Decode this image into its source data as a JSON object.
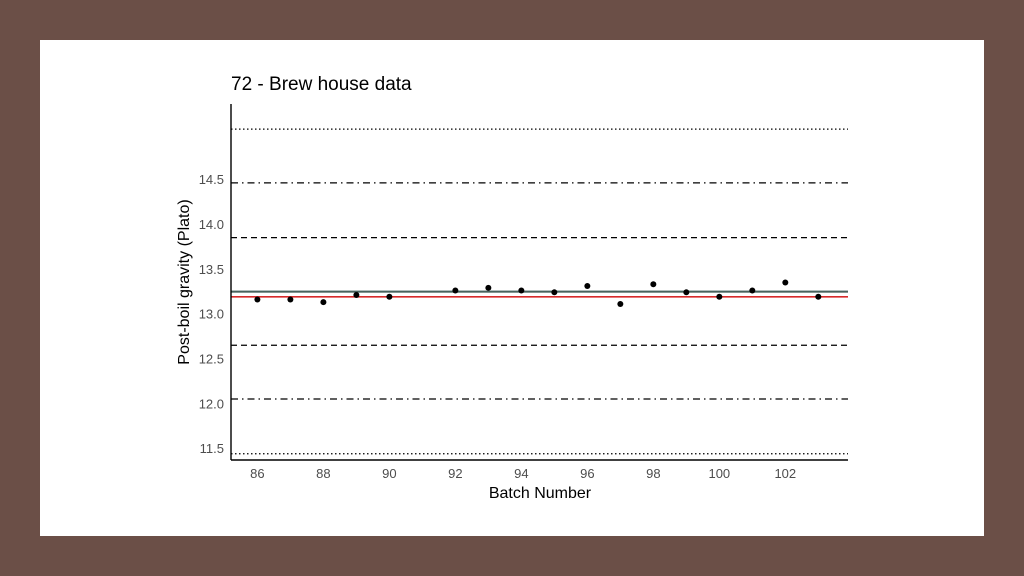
{
  "chart_data": {
    "type": "scatter",
    "title": "72 - Brew house data",
    "xlabel": "Batch Number",
    "ylabel": "Post-boil gravity (Plato)",
    "xlim": [
      85.2,
      103.9
    ],
    "ylim": [
      11.38,
      15.35
    ],
    "x_ticks": [
      86,
      88,
      90,
      92,
      94,
      96,
      98,
      100,
      102
    ],
    "x_tick_labels": [
      "86",
      "88",
      "90",
      "92",
      "94",
      "96",
      "98",
      "100",
      "102"
    ],
    "y_ticks": [
      11.5,
      12.0,
      12.5,
      13.0,
      13.5,
      14.0,
      14.5
    ],
    "y_tick_labels": [
      "11.5",
      "12.0",
      "12.5",
      "13.0",
      "13.5",
      "14.0",
      "14.5"
    ],
    "grid": false,
    "points": [
      {
        "x": 86,
        "y": 13.17
      },
      {
        "x": 87,
        "y": 13.17
      },
      {
        "x": 88,
        "y": 13.14
      },
      {
        "x": 89,
        "y": 13.22
      },
      {
        "x": 90,
        "y": 13.2
      },
      {
        "x": 92,
        "y": 13.27
      },
      {
        "x": 93,
        "y": 13.3
      },
      {
        "x": 94,
        "y": 13.27
      },
      {
        "x": 95,
        "y": 13.25
      },
      {
        "x": 96,
        "y": 13.32
      },
      {
        "x": 97,
        "y": 13.12
      },
      {
        "x": 98,
        "y": 13.34
      },
      {
        "x": 99,
        "y": 13.25
      },
      {
        "x": 100,
        "y": 13.2
      },
      {
        "x": 101,
        "y": 13.27
      },
      {
        "x": 102,
        "y": 13.36
      },
      {
        "x": 103,
        "y": 13.2
      }
    ],
    "reference_lines": [
      {
        "y": 15.07,
        "style": "dotted",
        "color": "#000000"
      },
      {
        "y": 14.47,
        "style": "dashdot",
        "color": "#000000"
      },
      {
        "y": 13.86,
        "style": "dashed",
        "color": "#000000"
      },
      {
        "y": 13.265,
        "style": "solid",
        "color": "#a9b7b5"
      },
      {
        "y": 13.255,
        "style": "solid",
        "color": "#3a5752"
      },
      {
        "y": 13.2,
        "style": "solid",
        "color": "#d62a2a"
      },
      {
        "y": 12.66,
        "style": "dashed",
        "color": "#000000"
      },
      {
        "y": 12.06,
        "style": "dashdot",
        "color": "#000000"
      },
      {
        "y": 11.45,
        "style": "dotted",
        "color": "#000000"
      }
    ],
    "colors": {
      "points": "#000000",
      "axis": "#000000",
      "background": "#ffffff",
      "outer": "#6b4f47"
    }
  }
}
